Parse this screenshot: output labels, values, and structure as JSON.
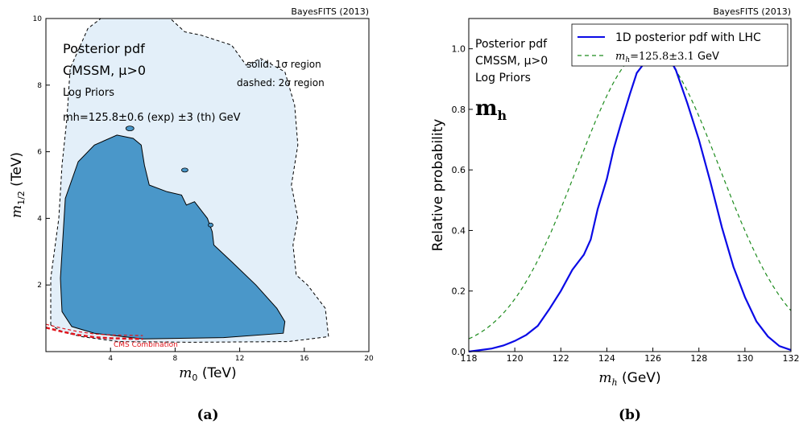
{
  "panels": [
    {
      "label": "(a)"
    },
    {
      "label": "(b)"
    }
  ],
  "chart_data": [
    {
      "type": "contour",
      "watermark": "BayesFITS (2013)",
      "xlabel": "m0 (TeV)",
      "ylabel": "m1/2 (TeV)",
      "xlim": [
        0,
        20
      ],
      "ylim": [
        0,
        10
      ],
      "xticks": [
        "4",
        "8",
        "12",
        "16",
        "20"
      ],
      "yticks": [
        "2",
        "4",
        "6",
        "8",
        "10"
      ],
      "annotation_lines": [
        "Posterior pdf",
        "CMSSM, μ>0",
        "Log Priors",
        "mh=125.8±0.6 (exp)  ±3 (th) GeV"
      ],
      "legend_text": [
        "solid: 1σ region",
        "dashed: 2σ region"
      ],
      "exclusion_label": "CMS Combination",
      "colors": {
        "one_sigma": "#4a97c9",
        "two_sigma": "#e3eff9",
        "exclusion": "#e0141c"
      },
      "one_sigma_region": [
        [
          1.0,
          1.2
        ],
        [
          0.9,
          2.2
        ],
        [
          1.2,
          4.6
        ],
        [
          2.0,
          5.7
        ],
        [
          3.0,
          6.2
        ],
        [
          4.4,
          6.5
        ],
        [
          5.4,
          6.4
        ],
        [
          5.9,
          6.2
        ],
        [
          6.1,
          5.6
        ],
        [
          6.4,
          5.0
        ],
        [
          7.5,
          4.8
        ],
        [
          8.4,
          4.7
        ],
        [
          8.7,
          4.4
        ],
        [
          9.2,
          4.5
        ],
        [
          10.0,
          4.0
        ],
        [
          10.3,
          3.6
        ],
        [
          10.4,
          3.2
        ],
        [
          11.5,
          2.7
        ],
        [
          13.0,
          2.0
        ],
        [
          14.3,
          1.3
        ],
        [
          14.8,
          0.9
        ],
        [
          14.7,
          0.55
        ],
        [
          11.0,
          0.42
        ],
        [
          6.0,
          0.38
        ],
        [
          3.0,
          0.55
        ],
        [
          1.6,
          0.75
        ]
      ],
      "two_sigma_region": [
        [
          0.3,
          0.8
        ],
        [
          0.3,
          2.2
        ],
        [
          0.8,
          4.0
        ],
        [
          1.0,
          5.6
        ],
        [
          1.3,
          7.0
        ],
        [
          1.5,
          8.5
        ],
        [
          2.6,
          9.7
        ],
        [
          3.4,
          10.0
        ],
        [
          7.7,
          10.0
        ],
        [
          8.6,
          9.6
        ],
        [
          9.6,
          9.5
        ],
        [
          11.5,
          9.2
        ],
        [
          12.4,
          8.6
        ],
        [
          13.3,
          8.8
        ],
        [
          14.8,
          8.4
        ],
        [
          15.4,
          7.4
        ],
        [
          15.6,
          6.2
        ],
        [
          15.2,
          5.0
        ],
        [
          15.6,
          4.0
        ],
        [
          15.3,
          3.2
        ],
        [
          15.5,
          2.3
        ],
        [
          16.2,
          2.0
        ],
        [
          17.3,
          1.3
        ],
        [
          17.5,
          0.45
        ],
        [
          15.0,
          0.3
        ],
        [
          9.0,
          0.28
        ],
        [
          4.5,
          0.3
        ],
        [
          2.2,
          0.45
        ],
        [
          1.0,
          0.6
        ]
      ],
      "exclusion_curve": [
        [
          0,
          0.72
        ],
        [
          1,
          0.6
        ],
        [
          2,
          0.5
        ],
        [
          3,
          0.43
        ],
        [
          4,
          0.4
        ],
        [
          5,
          0.39
        ],
        [
          6,
          0.38
        ]
      ]
    },
    {
      "type": "line",
      "watermark": "BayesFITS (2013)",
      "xlabel": "mh (GeV)",
      "ylabel": "Relative probability",
      "xlim": [
        118,
        132
      ],
      "ylim": [
        0,
        1.1
      ],
      "xticks": [
        "118",
        "120",
        "122",
        "124",
        "126",
        "128",
        "130",
        "132"
      ],
      "yticks": [
        "0.0",
        "0.2",
        "0.4",
        "0.6",
        "0.8",
        "1.0"
      ],
      "annotation_lines": [
        "Posterior pdf",
        "CMSSM, μ>0",
        "Log Priors"
      ],
      "big_label": "mh",
      "series": [
        {
          "name": "1D posterior pdf with LHC",
          "style": "solid",
          "color": "#0a0ae6",
          "x": [
            118,
            118.5,
            119,
            119.5,
            120,
            120.5,
            121,
            121.5,
            122,
            122.5,
            122.8,
            123,
            123.3,
            123.6,
            124,
            124.3,
            124.6,
            125,
            125.3,
            125.6,
            125.9,
            126.1,
            126.4,
            126.7,
            127,
            127.5,
            128,
            128.5,
            129,
            129.5,
            130,
            130.5,
            131,
            131.5,
            132
          ],
          "y": [
            0.0,
            0.005,
            0.01,
            0.02,
            0.035,
            0.055,
            0.085,
            0.14,
            0.2,
            0.27,
            0.3,
            0.32,
            0.37,
            0.47,
            0.57,
            0.67,
            0.75,
            0.85,
            0.92,
            0.95,
            0.98,
            0.99,
            1.0,
            0.97,
            0.93,
            0.82,
            0.7,
            0.56,
            0.41,
            0.28,
            0.18,
            0.1,
            0.05,
            0.018,
            0.005
          ]
        },
        {
          "name": "mh=125.8±3.1 GeV",
          "style": "dashed",
          "color": "#1e8c1e",
          "gaussian": {
            "mean": 125.8,
            "sigma": 3.1
          }
        }
      ]
    }
  ]
}
